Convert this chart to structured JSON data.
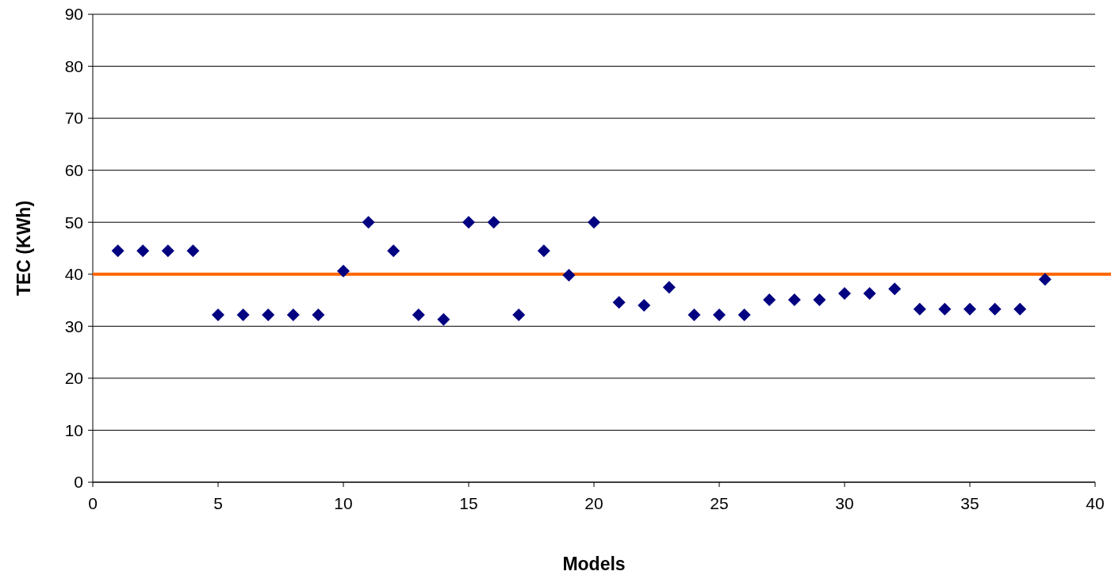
{
  "chart_data": {
    "type": "scatter",
    "xlabel": "Models",
    "ylabel": "TEC (KWh)",
    "x": [
      1,
      2,
      3,
      4,
      5,
      6,
      7,
      8,
      9,
      10,
      11,
      12,
      13,
      14,
      15,
      16,
      17,
      18,
      19,
      20,
      21,
      22,
      23,
      24,
      25,
      26,
      27,
      28,
      29,
      30,
      31,
      32,
      33,
      34,
      35,
      36,
      37,
      38
    ],
    "series": [
      {
        "color": "#000080",
        "values": [
          44.5,
          44.5,
          44.5,
          44.5,
          32.2,
          32.2,
          32.2,
          32.2,
          32.2,
          40.6,
          50,
          44.5,
          32.2,
          31.3,
          50,
          50,
          32.2,
          44.5,
          39.8,
          50,
          34.6,
          34,
          37.5,
          32.2,
          32.2,
          32.2,
          35.1,
          35.1,
          35.1,
          36.3,
          36.3,
          37.2,
          33.3,
          33.3,
          33.3,
          33.3,
          33.3,
          39
        ]
      }
    ],
    "xlim": [
      0,
      40
    ],
    "xticks": [
      0,
      5,
      10,
      15,
      20,
      25,
      30,
      35,
      40
    ],
    "ylim": [
      0,
      90
    ],
    "yticks": [
      0,
      10,
      20,
      30,
      40,
      50,
      60,
      70,
      80,
      90
    ],
    "grid": "y",
    "marker": "diamond",
    "ref_lines": [
      {
        "axis": "y",
        "value": 40,
        "color": "#ff6600",
        "line_style": "solid"
      }
    ]
  }
}
